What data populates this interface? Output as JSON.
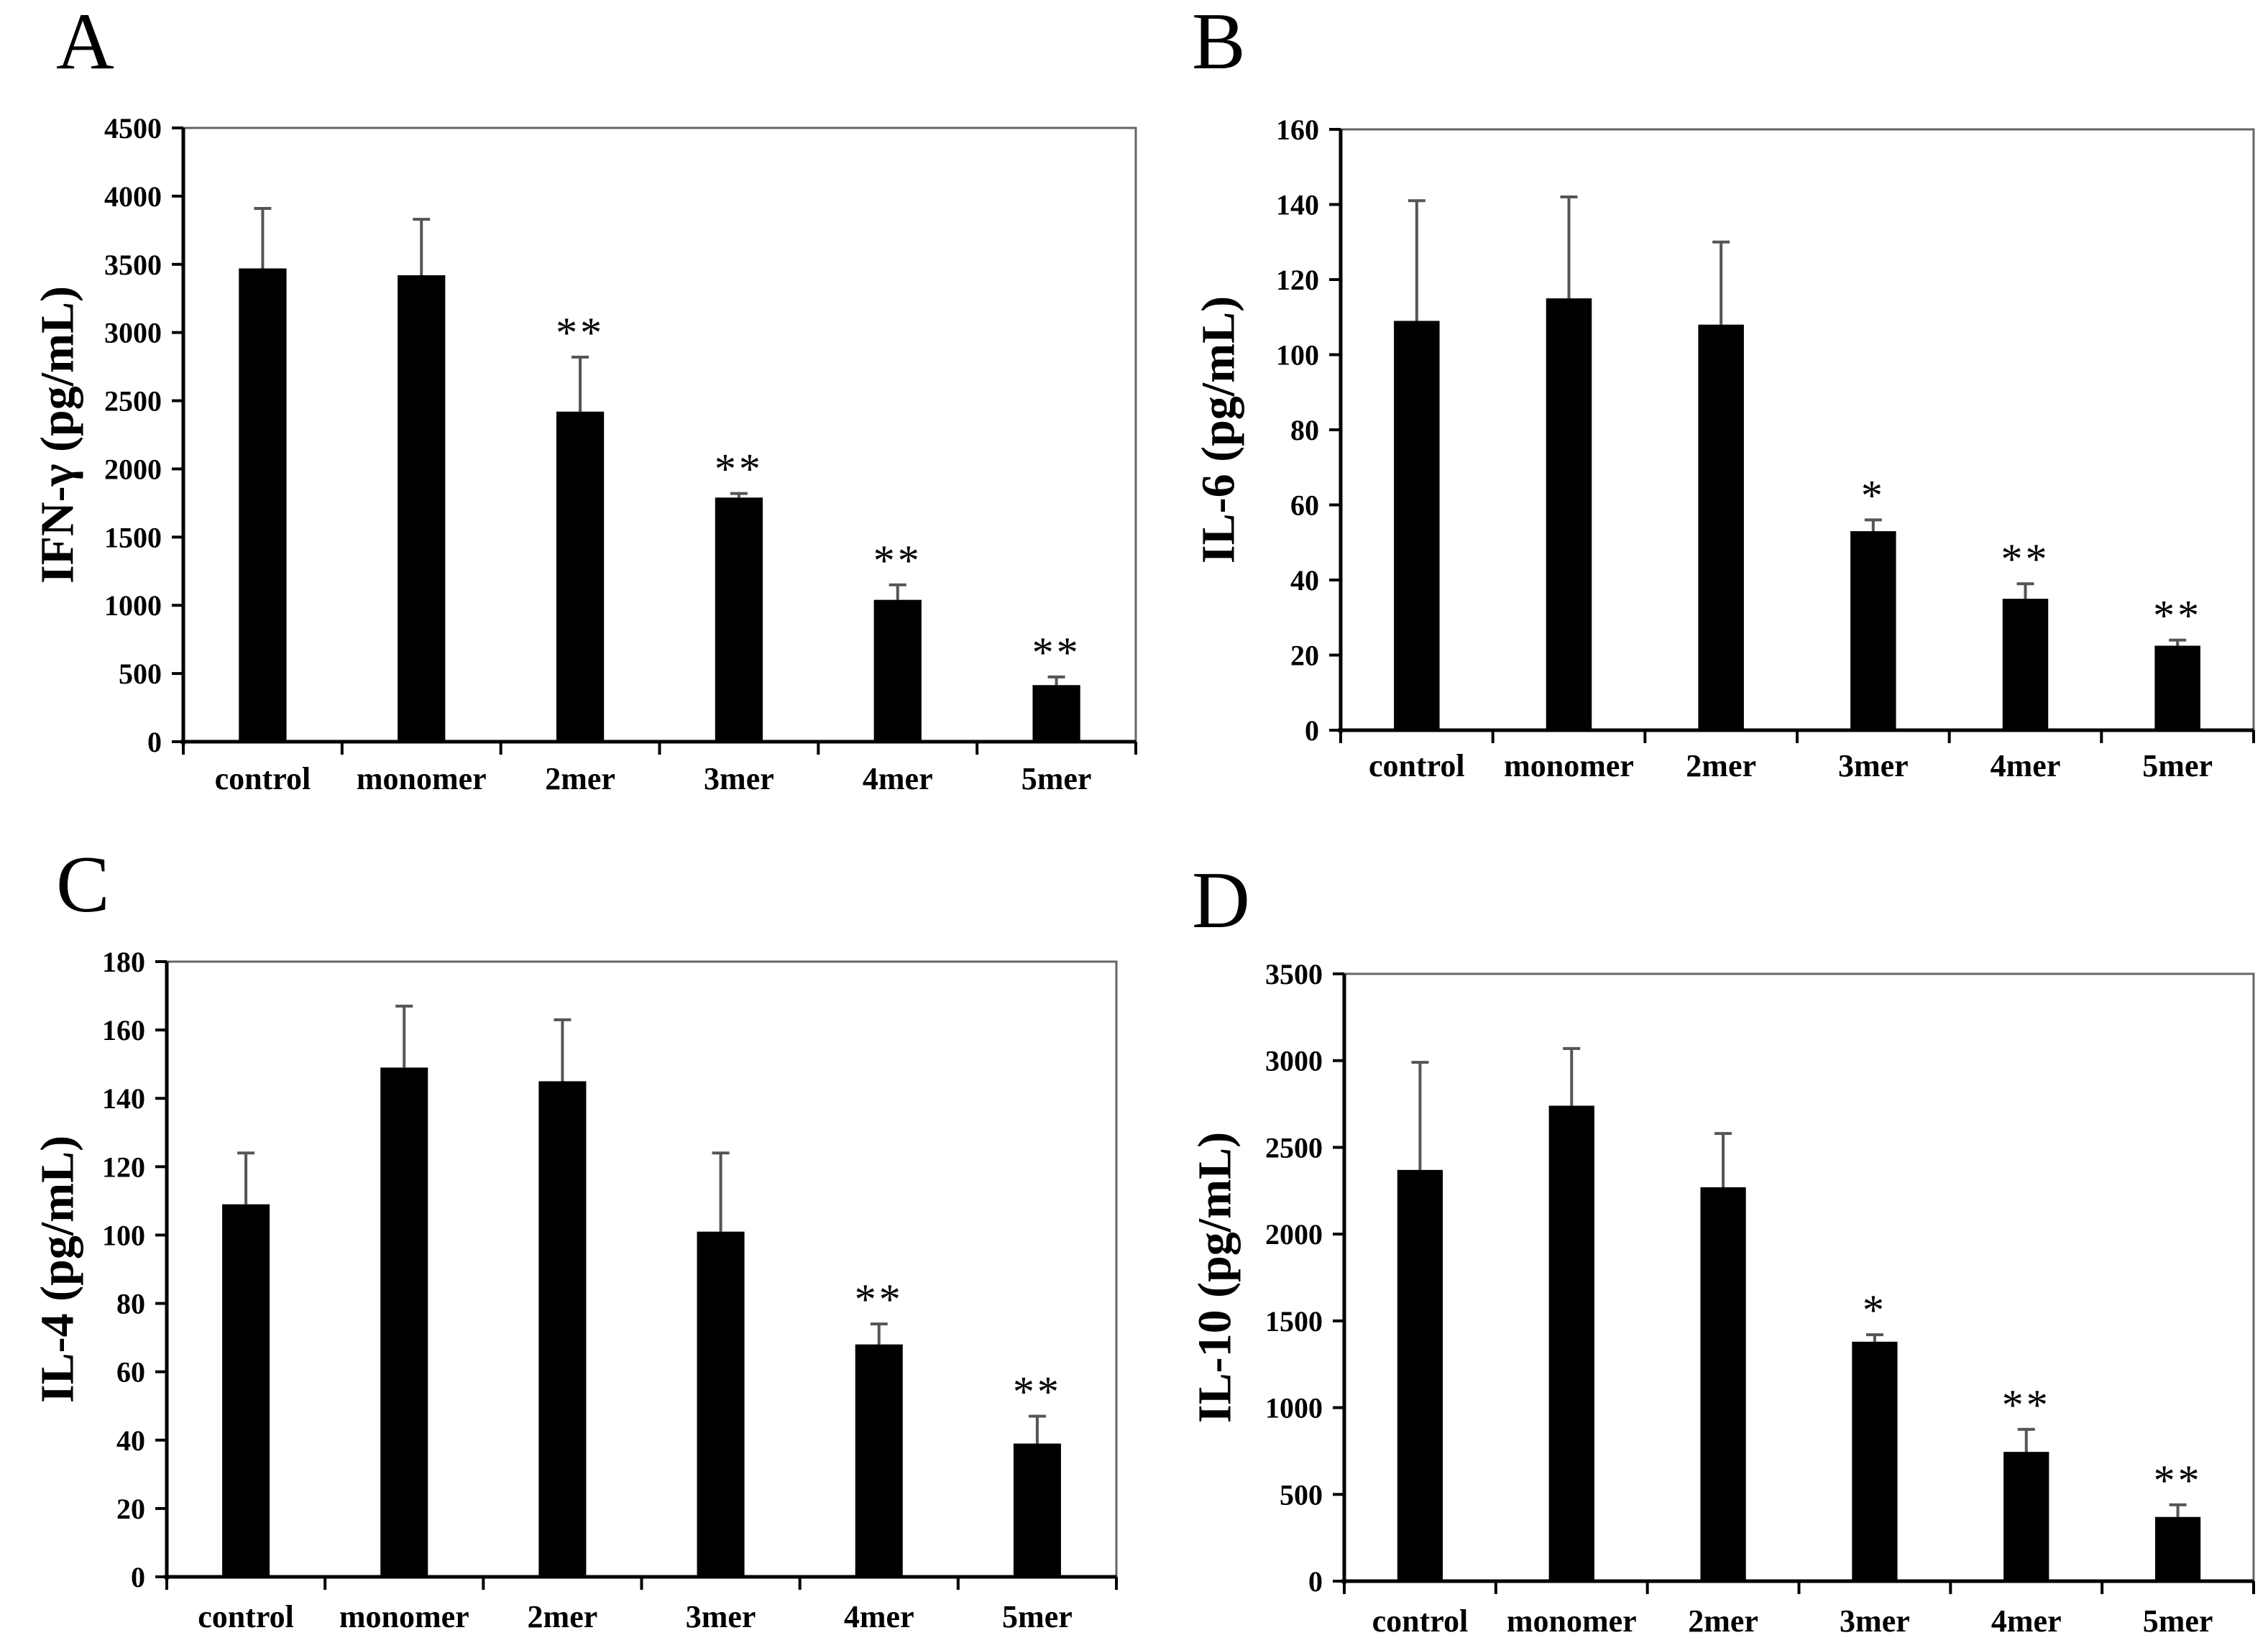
{
  "colors": {
    "bar": "#000000",
    "axis": "#000000",
    "errorbar": "#555555",
    "frame": "#666666"
  },
  "chart_data": [
    {
      "type": "bar",
      "panel": "A",
      "ylabel": "IFN-γ (pg/mL)",
      "categories": [
        "control",
        "monomer",
        "2mer",
        "3mer",
        "4mer",
        "5mer"
      ],
      "values": [
        3470,
        3420,
        2420,
        1790,
        1040,
        415
      ],
      "errors": [
        440,
        410,
        400,
        30,
        110,
        60
      ],
      "significance": [
        "",
        "",
        "**",
        "**",
        "**",
        "**"
      ],
      "ylim": [
        0,
        4500
      ],
      "yticks": [
        0,
        500,
        1000,
        1500,
        2000,
        2500,
        3000,
        3500,
        4000,
        4500
      ],
      "yticklabels": [
        "0",
        "500",
        "1000",
        "1500",
        "2000",
        "2500",
        "3000",
        "3500",
        "4000",
        "4500"
      ],
      "grid": false
    },
    {
      "type": "bar",
      "panel": "B",
      "ylabel": "IL-6 (pg/mL)",
      "categories": [
        "control",
        "monomer",
        "2mer",
        "3mer",
        "4mer",
        "5mer"
      ],
      "values": [
        109,
        115,
        108,
        53,
        35,
        22.5
      ],
      "errors": [
        32,
        27,
        22,
        3,
        4,
        1.5
      ],
      "significance": [
        "",
        "",
        "",
        "*",
        "**",
        "**"
      ],
      "ylim": [
        0,
        160
      ],
      "yticks": [
        0,
        20,
        40,
        60,
        80,
        100,
        120,
        140,
        160
      ],
      "yticklabels": [
        "0",
        "20",
        "40",
        "60",
        "80",
        "100",
        "120",
        "140",
        "160"
      ],
      "grid": false
    },
    {
      "type": "bar",
      "panel": "C",
      "ylabel": "IL-4 (pg/mL)",
      "categories": [
        "control",
        "monomer",
        "2mer",
        "3mer",
        "4mer",
        "5mer"
      ],
      "values": [
        109,
        149,
        145,
        101,
        68,
        39
      ],
      "errors": [
        15,
        18,
        18,
        23,
        6,
        8
      ],
      "significance": [
        "",
        "",
        "",
        "",
        "**",
        "**"
      ],
      "ylim": [
        0,
        180
      ],
      "yticks": [
        0,
        20,
        40,
        60,
        80,
        100,
        120,
        140,
        160,
        180
      ],
      "yticklabels": [
        "0",
        "20",
        "40",
        "60",
        "80",
        "100",
        "120",
        "140",
        "160",
        "180"
      ],
      "grid": false
    },
    {
      "type": "bar",
      "panel": "D",
      "ylabel": "IL-10 (pg/mL)",
      "categories": [
        "control",
        "monomer",
        "2mer",
        "3mer",
        "4mer",
        "5mer"
      ],
      "values": [
        2370,
        2740,
        2270,
        1380,
        745,
        370
      ],
      "errors": [
        620,
        330,
        310,
        40,
        130,
        70
      ],
      "significance": [
        "",
        "",
        "",
        "*",
        "**",
        "**"
      ],
      "ylim": [
        0,
        3500
      ],
      "yticks": [
        0,
        500,
        1000,
        1500,
        2000,
        2500,
        3000,
        3500
      ],
      "yticklabels": [
        "0",
        "500",
        "1000",
        "1500",
        "2000",
        "2500",
        "3000",
        "3500"
      ],
      "grid": false
    }
  ]
}
